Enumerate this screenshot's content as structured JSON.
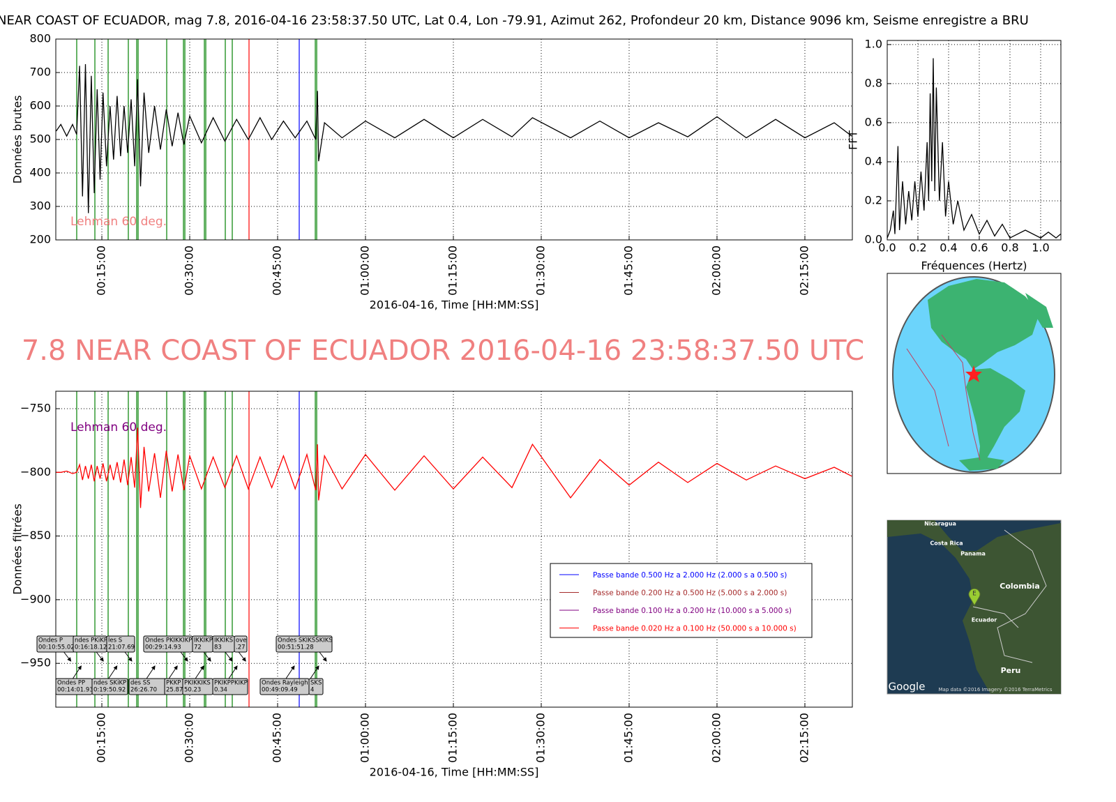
{
  "page_title": "NEAR COAST OF ECUADOR, mag 7.8, 2016-04-16 23:58:37.50 UTC, Lat 0.4, Lon -79.91, Azimut 262, Profondeur 20 km, Distance  9096 km, Seisme enregistre a BRU",
  "headline": "7.8 NEAR COAST OF ECUADOR 2016-04-16 23:58:37.50 UTC",
  "phase_lines": [
    {
      "value": 10.71,
      "color": "#008000"
    },
    {
      "value": 13.81,
      "color": "#008000"
    },
    {
      "value": 16.07,
      "color": "#008000"
    },
    {
      "value": 19.52,
      "color": "#008000"
    },
    {
      "value": 20.95,
      "color": "#008000"
    },
    {
      "value": 21.19,
      "color": "#008000"
    },
    {
      "value": 26.07,
      "color": "#008000"
    },
    {
      "value": 28.93,
      "color": "#008000"
    },
    {
      "value": 29.17,
      "color": "#008000"
    },
    {
      "value": 32.5,
      "color": "#008000"
    },
    {
      "value": 32.74,
      "color": "#008000"
    },
    {
      "value": 36.07,
      "color": "#008000"
    },
    {
      "value": 37.26,
      "color": "#008000"
    },
    {
      "value": 40.12,
      "color": "#ff0000"
    },
    {
      "value": 48.69,
      "color": "#0000ff"
    },
    {
      "value": 51.43,
      "color": "#008000"
    },
    {
      "value": 51.67,
      "color": "#008000"
    }
  ],
  "chart_data": [
    {
      "type": "line",
      "y_label": "Données brutes",
      "x_label": "2016-04-16, Time [HH:MM:SS]",
      "color": "#000000",
      "annotation": {
        "text": "Lehman 60 deg.",
        "color": "#f08080"
      },
      "xlim": [
        7.14,
        143.1
      ],
      "ylim": [
        200,
        800
      ],
      "grid": true,
      "xticks": [
        {
          "value": 15,
          "label": "00:15:00"
        },
        {
          "value": 30,
          "label": "00:30:00"
        },
        {
          "value": 45,
          "label": "00:45:00"
        },
        {
          "value": 60,
          "label": "01:00:00"
        },
        {
          "value": 75,
          "label": "01:15:00"
        },
        {
          "value": 90,
          "label": "01:30:00"
        },
        {
          "value": 105,
          "label": "01:45:00"
        },
        {
          "value": 120,
          "label": "02:00:00"
        },
        {
          "value": 135,
          "label": "02:15:00"
        }
      ],
      "yticks": [
        200,
        300,
        400,
        500,
        600,
        700,
        800
      ],
      "x": [
        7.2,
        8,
        9,
        10,
        10.7,
        11.2,
        11.7,
        12.2,
        12.7,
        13.2,
        13.7,
        14.2,
        14.7,
        15.2,
        15.8,
        16.4,
        17,
        17.6,
        18.2,
        18.8,
        19.4,
        20,
        20.6,
        21.1,
        21.6,
        22.2,
        23,
        24,
        25,
        26,
        27,
        28,
        29,
        30,
        32,
        34,
        36,
        38,
        40,
        42,
        44,
        46,
        48,
        50,
        51.5,
        51.8,
        52,
        53,
        56,
        60,
        65,
        70,
        75,
        80,
        85,
        88.5,
        95,
        100,
        105,
        110,
        115,
        120,
        125,
        130,
        135,
        140,
        143
      ],
      "values": [
        525,
        545,
        510,
        545,
        515,
        720,
        330,
        725,
        280,
        690,
        340,
        650,
        380,
        640,
        420,
        600,
        440,
        630,
        450,
        600,
        460,
        620,
        420,
        680,
        360,
        640,
        460,
        600,
        470,
        590,
        480,
        580,
        485,
        570,
        490,
        565,
        495,
        560,
        500,
        565,
        500,
        555,
        505,
        555,
        500,
        645,
        435,
        550,
        505,
        555,
        505,
        560,
        505,
        560,
        508,
        565,
        505,
        555,
        505,
        550,
        508,
        568,
        505,
        560,
        505,
        550,
        510
      ]
    },
    {
      "type": "line",
      "y_label": "FFT",
      "x_label": "Fréquences (Hertz)",
      "color": "#000000",
      "xlim": [
        0,
        1.132
      ],
      "ylim": [
        0,
        1.021
      ],
      "grid": true,
      "xticks": [
        {
          "value": 0,
          "label": "0.0"
        },
        0.2,
        0.4,
        0.6,
        0.8,
        {
          "value": 1,
          "label": "1.0"
        }
      ],
      "yticks": [
        {
          "value": 0,
          "label": "0.0"
        },
        0.2,
        0.4,
        0.6,
        0.8,
        {
          "value": 1,
          "label": "1.0"
        }
      ],
      "x": [
        0,
        0.02,
        0.04,
        0.05,
        0.06,
        0.07,
        0.08,
        0.1,
        0.12,
        0.14,
        0.16,
        0.18,
        0.2,
        0.22,
        0.24,
        0.26,
        0.27,
        0.28,
        0.29,
        0.3,
        0.31,
        0.32,
        0.34,
        0.36,
        0.38,
        0.4,
        0.43,
        0.46,
        0.5,
        0.55,
        0.6,
        0.65,
        0.7,
        0.75,
        0.8,
        0.9,
        1.0,
        1.05,
        1.1,
        1.13
      ],
      "values": [
        0.01,
        0.05,
        0.15,
        0.03,
        0.25,
        0.48,
        0.05,
        0.3,
        0.08,
        0.25,
        0.1,
        0.3,
        0.12,
        0.35,
        0.15,
        0.5,
        0.2,
        0.75,
        0.3,
        0.93,
        0.25,
        0.78,
        0.2,
        0.5,
        0.12,
        0.3,
        0.08,
        0.2,
        0.05,
        0.13,
        0.03,
        0.1,
        0.02,
        0.08,
        0.01,
        0.05,
        0.01,
        0.04,
        0.01,
        0.03
      ]
    },
    {
      "type": "line",
      "y_label": "Données filtrées",
      "x_label": "2016-04-16, Time [HH:MM:SS]",
      "color": "#ff0000",
      "annotation": {
        "text": "Lehman 60 deg.",
        "color": "#800080"
      },
      "xlim": [
        7.14,
        143.1
      ],
      "ylim": [
        -984.4,
        -736.3
      ],
      "grid": true,
      "xticks": [
        {
          "value": 15,
          "label": "00:15:00"
        },
        {
          "value": 30,
          "label": "00:30:00"
        },
        {
          "value": 45,
          "label": "00:45:00"
        },
        {
          "value": 60,
          "label": "01:00:00"
        },
        {
          "value": 75,
          "label": "01:15:00"
        },
        {
          "value": 90,
          "label": "01:30:00"
        },
        {
          "value": 105,
          "label": "01:45:00"
        },
        {
          "value": 120,
          "label": "02:00:00"
        },
        {
          "value": 135,
          "label": "02:15:00"
        }
      ],
      "yticks": [
        {
          "value": -950,
          "label": "−950"
        },
        {
          "value": -900,
          "label": "−900"
        },
        {
          "value": -850,
          "label": "−850"
        },
        {
          "value": -800,
          "label": "−800"
        },
        {
          "value": -750,
          "label": "−750"
        }
      ],
      "legend": [
        {
          "name": "Passe bande 0.500 Hz a 2.000 Hz (2.000 s a 0.500 s)",
          "color": "#0000ff"
        },
        {
          "name": "Passe bande 0.200 Hz a 0.500 Hz (5.000 s a 2.000 s)",
          "color": "#a52a2a"
        },
        {
          "name": "Passe bande 0.100 Hz a 0.200 Hz (10.000 s a 5.000 s)",
          "color": "#800080"
        },
        {
          "name": "Passe bande 0.020 Hz a 0.100 Hz (50.000 s a 10.000 s)",
          "color": "#ff0000"
        }
      ],
      "phase_labels": [
        [
          "Ondes P",
          "00:10:55.02"
        ],
        [
          "ndes PKiKP",
          "0:16:18.12"
        ],
        [
          "les S",
          "21:07.69"
        ],
        [
          "Ondes PKIKKIKP",
          "00:29:14.93"
        ],
        [
          "IKKIKP",
          "72"
        ],
        [
          "IKKIKS",
          "83"
        ],
        [
          "ove",
          ".27"
        ],
        [
          "Ondes SKIKSSKIKS",
          "00:51:51.28"
        ],
        [
          "Ondes PP",
          "00:14:01.93"
        ],
        [
          "ndes SKiKP",
          "0:19:50.92"
        ],
        [
          "des SS",
          "26:26.70"
        ],
        [
          "PKKP",
          "25.87"
        ],
        [
          "PKIKKIKS",
          "50.23"
        ],
        [
          "PKIKPPKIKP",
          "0.34"
        ],
        [
          "Ondes Rayleigh",
          "00:49:09.49"
        ],
        [
          "SKS",
          "4"
        ]
      ],
      "x": [
        7.2,
        8,
        9,
        10,
        10.7,
        11.2,
        11.7,
        12.2,
        12.7,
        13.2,
        13.7,
        14.2,
        14.7,
        15.2,
        15.8,
        16.4,
        17,
        17.6,
        18.2,
        18.8,
        19.4,
        20,
        20.6,
        21.1,
        21.6,
        22.2,
        23,
        24,
        25,
        26,
        27,
        28,
        29,
        30,
        32,
        34,
        36,
        38,
        40,
        42,
        44,
        46,
        48,
        50,
        51.5,
        51.8,
        52,
        53,
        56,
        60,
        65,
        70,
        75,
        80,
        85,
        88.5,
        95,
        100,
        105,
        110,
        115,
        120,
        125,
        130,
        135,
        140,
        143
      ],
      "values": [
        -800,
        -800,
        -799,
        -801,
        -800,
        -794,
        -806,
        -795,
        -805,
        -794,
        -807,
        -795,
        -805,
        -793,
        -807,
        -794,
        -806,
        -792,
        -808,
        -790,
        -810,
        -788,
        -812,
        -765,
        -828,
        -780,
        -815,
        -785,
        -820,
        -783,
        -815,
        -786,
        -814,
        -787,
        -813,
        -788,
        -812,
        -787,
        -813,
        -788,
        -812,
        -787,
        -813,
        -786,
        -814,
        -778,
        -822,
        -787,
        -813,
        -786,
        -814,
        -787,
        -813,
        -788,
        -812,
        -778,
        -820,
        -790,
        -810,
        -792,
        -808,
        -793,
        -806,
        -795,
        -805,
        -796,
        -803
      ]
    }
  ],
  "map": {
    "labels": [
      "Nicaragua",
      "Costa Rica",
      "Panama",
      "Colombia",
      "Ecuador",
      "Peru",
      "E",
      "Google",
      "Map data ©2016  Imagery ©2016 TerraMetrics"
    ]
  }
}
